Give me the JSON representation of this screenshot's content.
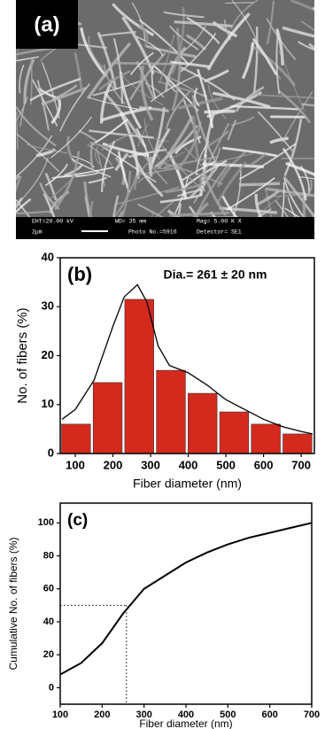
{
  "image": {
    "label": "(a)",
    "info": [
      "EHT=20.00 kV",
      "WD= 35 mm",
      "Mag= 5.00 K X",
      "2μm",
      "Photo No.=5916",
      "Detector= SE1"
    ]
  },
  "chart_data": [
    {
      "type": "histogram",
      "label": "(b)",
      "annotation": "Dia.= 261 ± 20 nm",
      "bins": [
        60,
        144,
        228,
        312,
        396,
        480,
        564,
        648,
        732
      ],
      "values": [
        6,
        14.5,
        31.5,
        17,
        12.3,
        8.5,
        6,
        4
      ],
      "color": "#d42a1e",
      "fit": {
        "x": [
          65,
          100,
          150,
          200,
          230,
          265,
          290,
          320,
          350,
          400,
          450,
          500,
          550,
          600,
          650,
          700,
          730
        ],
        "y": [
          7,
          9,
          15,
          26,
          32,
          34.5,
          31,
          22,
          18,
          16.5,
          14,
          11,
          9,
          7,
          5.5,
          4.5,
          4
        ],
        "color": "#000000"
      },
      "xlabel": "Fiber diameter (nm)",
      "ylabel": "No. of fibers (%)",
      "xlim": [
        60,
        735
      ],
      "xticks": [
        100,
        200,
        300,
        400,
        500,
        600,
        700
      ],
      "ylim": [
        0,
        40
      ],
      "yticks": [
        0,
        10,
        20,
        30,
        40
      ]
    },
    {
      "type": "line",
      "label": "(c)",
      "x": [
        100,
        150,
        200,
        250,
        300,
        350,
        400,
        450,
        500,
        550,
        600,
        650,
        700
      ],
      "series": [
        {
          "color": "#000000",
          "values": [
            8,
            15,
            27,
            45,
            60,
            68,
            76,
            82,
            87,
            91,
            94,
            97,
            100
          ]
        }
      ],
      "guide": {
        "x": 258,
        "y": 50
      },
      "xlabel": "Fiber diameter (nm)",
      "ylabel": "Cumulative No. of fibers (%)",
      "xlim": [
        100,
        700
      ],
      "xticks": [
        100,
        200,
        300,
        400,
        500,
        600,
        700
      ],
      "ylim": [
        -10,
        112
      ],
      "yticks": [
        0,
        20,
        40,
        60,
        80,
        100
      ]
    }
  ]
}
